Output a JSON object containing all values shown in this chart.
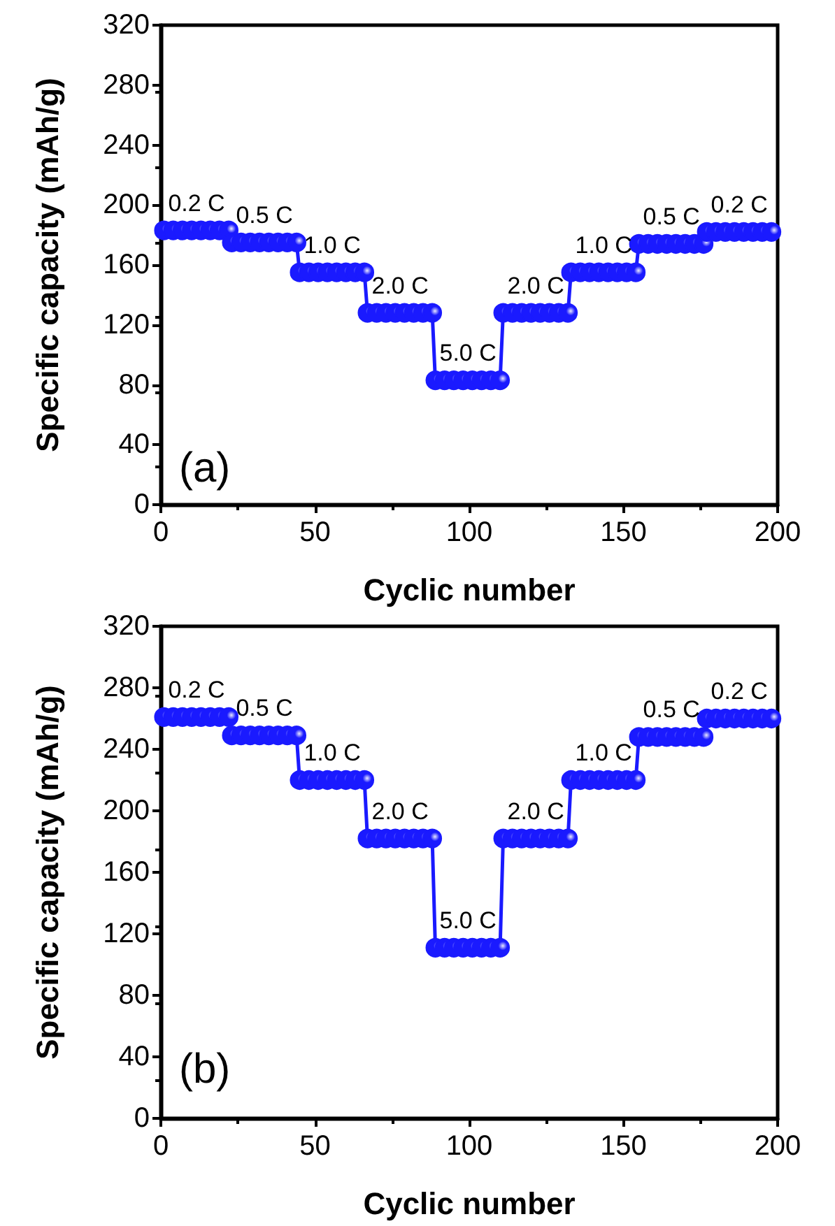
{
  "chart_data": [
    {
      "type": "line",
      "xlabel": "Cyclic number",
      "ylabel": "Specific capacity (mAh/g)",
      "xlim": [
        0,
        200
      ],
      "xticks": [
        0,
        50,
        100,
        150,
        200
      ],
      "ylim": [
        0,
        320
      ],
      "yticks": [
        0,
        40,
        80,
        120,
        160,
        200,
        240,
        280,
        320
      ],
      "grid": false,
      "marker": "circle",
      "line_style": "solid",
      "x": [
        1,
        4,
        7,
        10,
        13,
        16,
        19,
        22,
        23,
        26,
        29,
        32,
        35,
        38,
        41,
        44,
        45,
        48,
        51,
        54,
        57,
        60,
        63,
        66,
        67,
        70,
        73,
        76,
        79,
        82,
        85,
        88,
        89,
        92,
        95,
        98,
        101,
        104,
        107,
        110,
        111,
        114,
        117,
        120,
        123,
        126,
        129,
        132,
        133,
        136,
        139,
        142,
        145,
        148,
        151,
        154,
        155,
        158,
        161,
        164,
        167,
        170,
        173,
        176,
        177,
        180,
        183,
        186,
        189,
        192,
        195,
        198
      ],
      "series": [
        {
          "color": "#1a1aff",
          "values": [
            183,
            183,
            183,
            183,
            183,
            183,
            183,
            183,
            175,
            175,
            175,
            175,
            175,
            175,
            175,
            175,
            155,
            155,
            155,
            155,
            155,
            155,
            155,
            155,
            128,
            128,
            128,
            128,
            128,
            128,
            128,
            128,
            83,
            83,
            83,
            83,
            83,
            83,
            83,
            83,
            128,
            128,
            128,
            128,
            128,
            128,
            128,
            128,
            155,
            155,
            155,
            155,
            155,
            155,
            155,
            155,
            174,
            174,
            174,
            174,
            174,
            174,
            174,
            174,
            182,
            182,
            182,
            182,
            182,
            182,
            182,
            182
          ]
        }
      ],
      "annotations": [
        "(a)",
        {
          "text": "0.2 C",
          "x": 1,
          "y": 183
        },
        {
          "text": "0.5 C",
          "x": 23,
          "y": 175
        },
        {
          "text": "1.0 C",
          "x": 45,
          "y": 155
        },
        {
          "text": "2.0 C",
          "x": 67,
          "y": 128
        },
        {
          "text": "5.0 C",
          "x": 89,
          "y": 83
        },
        {
          "text": "2.0 C",
          "x": 111,
          "y": 128
        },
        {
          "text": "1.0 C",
          "x": 133,
          "y": 155
        },
        {
          "text": "0.5 C",
          "x": 155,
          "y": 174
        },
        {
          "text": "0.2 C",
          "x": 177,
          "y": 182
        }
      ]
    },
    {
      "type": "line",
      "xlabel": "Cyclic number",
      "ylabel": "Specific capacity (mAh/g)",
      "xlim": [
        0,
        200
      ],
      "xticks": [
        0,
        50,
        100,
        150,
        200
      ],
      "ylim": [
        0,
        320
      ],
      "yticks": [
        0,
        40,
        80,
        120,
        160,
        200,
        240,
        280,
        320
      ],
      "grid": false,
      "marker": "circle",
      "line_style": "solid",
      "x": [
        1,
        4,
        7,
        10,
        13,
        16,
        19,
        22,
        23,
        26,
        29,
        32,
        35,
        38,
        41,
        44,
        45,
        48,
        51,
        54,
        57,
        60,
        63,
        66,
        67,
        70,
        73,
        76,
        79,
        82,
        85,
        88,
        89,
        92,
        95,
        98,
        101,
        104,
        107,
        110,
        111,
        114,
        117,
        120,
        123,
        126,
        129,
        132,
        133,
        136,
        139,
        142,
        145,
        148,
        151,
        154,
        155,
        158,
        161,
        164,
        167,
        170,
        173,
        176,
        177,
        180,
        183,
        186,
        189,
        192,
        195,
        198
      ],
      "series": [
        {
          "color": "#1a1aff",
          "values": [
            261,
            261,
            261,
            261,
            261,
            261,
            261,
            261,
            249,
            249,
            249,
            249,
            249,
            249,
            249,
            249,
            220,
            220,
            220,
            220,
            220,
            220,
            220,
            220,
            182,
            182,
            182,
            182,
            182,
            182,
            182,
            182,
            111,
            111,
            111,
            111,
            111,
            111,
            111,
            111,
            182,
            182,
            182,
            182,
            182,
            182,
            182,
            182,
            220,
            220,
            220,
            220,
            220,
            220,
            220,
            220,
            248,
            248,
            248,
            248,
            248,
            248,
            248,
            248,
            260,
            260,
            260,
            260,
            260,
            260,
            260,
            260
          ]
        }
      ],
      "annotations": [
        "(b)",
        {
          "text": "0.2 C",
          "x": 1,
          "y": 261
        },
        {
          "text": "0.5 C",
          "x": 23,
          "y": 249
        },
        {
          "text": "1.0 C",
          "x": 45,
          "y": 220
        },
        {
          "text": "2.0 C",
          "x": 67,
          "y": 182
        },
        {
          "text": "5.0 C",
          "x": 89,
          "y": 111
        },
        {
          "text": "2.0 C",
          "x": 111,
          "y": 182
        },
        {
          "text": "1.0 C",
          "x": 133,
          "y": 220
        },
        {
          "text": "0.5 C",
          "x": 155,
          "y": 248
        },
        {
          "text": "0.2 C",
          "x": 177,
          "y": 260
        }
      ]
    }
  ]
}
